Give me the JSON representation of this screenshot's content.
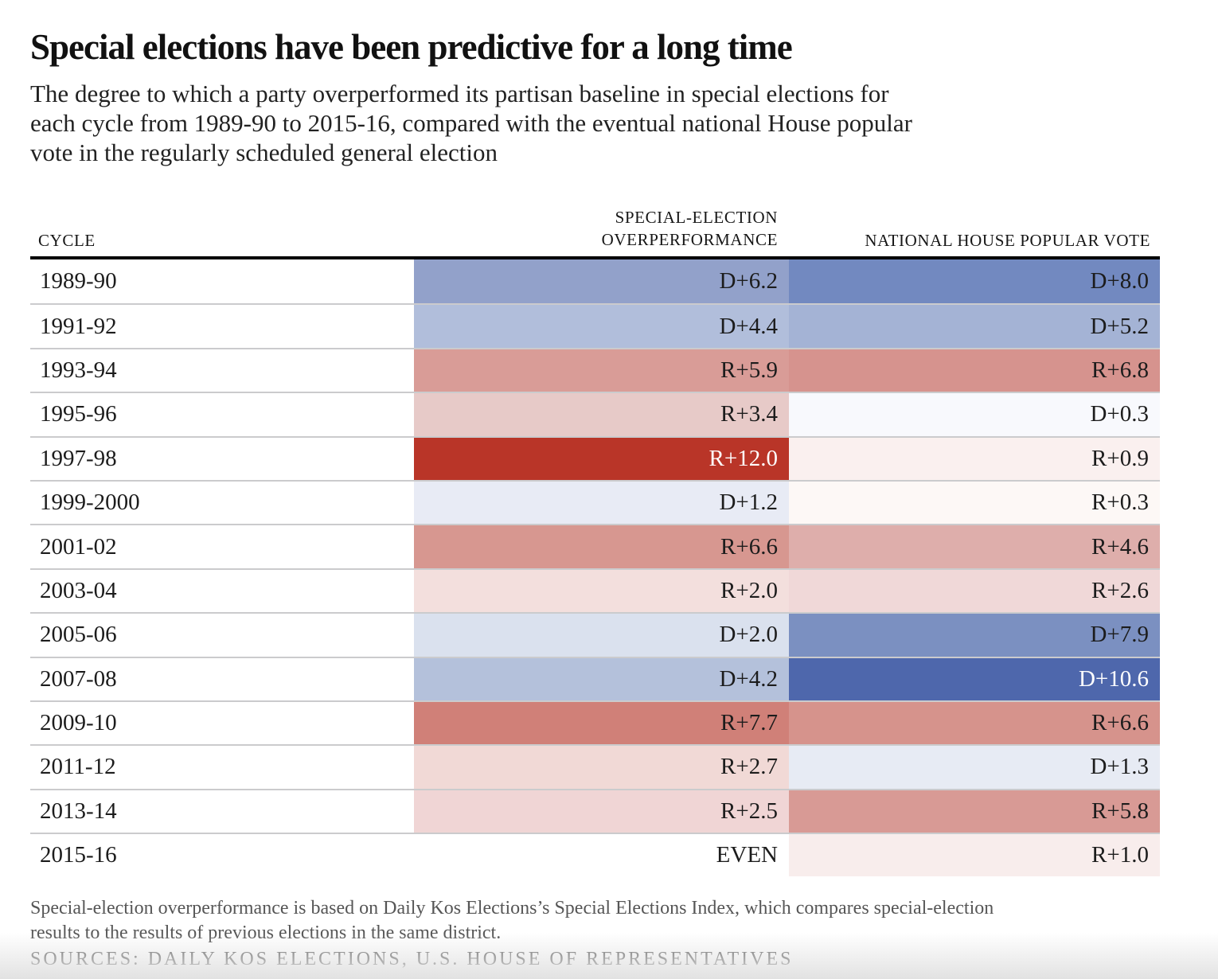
{
  "title": "Special elections have been predictive for a long time",
  "subtitle_lines": [
    "The degree to which a party overperformed its partisan baseline in special elections for",
    "each cycle from 1989-90 to 2015-16, compared with the eventual national House popular",
    "vote in the regularly scheduled general election"
  ],
  "table": {
    "cycle_label": "CYCLE",
    "special_label_line1": "SPECIAL-ELECTION",
    "special_label_line2": "OVERPERFORMANCE",
    "house_label": "NATIONAL HOUSE POPULAR VOTE",
    "rows": [
      {
        "cycle": "1989-90",
        "special": "D+6.2",
        "special_bg": "#92a1ca",
        "house": "D+8.0",
        "house_bg": "#7289c0"
      },
      {
        "cycle": "1991-92",
        "special": "D+4.4",
        "special_bg": "#b1bedb",
        "house": "D+5.2",
        "house_bg": "#a4b3d5"
      },
      {
        "cycle": "1993-94",
        "special": "R+5.9",
        "special_bg": "#d99c97",
        "house": "R+6.8",
        "house_bg": "#d6938e"
      },
      {
        "cycle": "1995-96",
        "special": "R+3.4",
        "special_bg": "#e7cac8",
        "house": "D+0.3",
        "house_bg": "#f8f9fd"
      },
      {
        "cycle": "1997-98",
        "special": "R+12.0",
        "special_bg": "#b93528",
        "special_fg": "#ffffff",
        "house": "R+0.9",
        "house_bg": "#faf0ef"
      },
      {
        "cycle": "1999-2000",
        "special": "D+1.2",
        "special_bg": "#e8ebf5",
        "house": "R+0.3",
        "house_bg": "#fdf8f6"
      },
      {
        "cycle": "2001-02",
        "special": "R+6.6",
        "special_bg": "#d79790",
        "house": "R+4.6",
        "house_bg": "#deaeab"
      },
      {
        "cycle": "2003-04",
        "special": "R+2.0",
        "special_bg": "#f3dfdd",
        "house": "R+2.6",
        "house_bg": "#f0d8d8"
      },
      {
        "cycle": "2005-06",
        "special": "D+2.0",
        "special_bg": "#dae1ee",
        "house": "D+7.9",
        "house_bg": "#7b90c1"
      },
      {
        "cycle": "2007-08",
        "special": "D+4.2",
        "special_bg": "#b4c1db",
        "house": "D+10.6",
        "house_bg": "#4e67ac",
        "house_fg": "#ffffff"
      },
      {
        "cycle": "2009-10",
        "special": "R+7.7",
        "special_bg": "#d08078",
        "house": "R+6.6",
        "house_bg": "#d6938c"
      },
      {
        "cycle": "2011-12",
        "special": "R+2.7",
        "special_bg": "#f1d9d6",
        "house": "D+1.3",
        "house_bg": "#e7ebf4"
      },
      {
        "cycle": "2013-14",
        "special": "R+2.5",
        "special_bg": "#f0d5d5",
        "house": "R+5.8",
        "house_bg": "#d89a95"
      },
      {
        "cycle": "2015-16",
        "special": "EVEN",
        "special_bg": "#ffffff",
        "house": "R+1.0",
        "house_bg": "#f8edec"
      }
    ]
  },
  "chart_data": {
    "type": "table",
    "title": "Special elections have been predictive for a long time",
    "columns": [
      "CYCLE",
      "SPECIAL-ELECTION OVERPERFORMANCE",
      "NATIONAL HOUSE POPULAR VOTE"
    ],
    "rows": [
      {
        "cycle": "1989-90",
        "special_election_overperformance": "D+6.2",
        "national_house_popular_vote": "D+8.0"
      },
      {
        "cycle": "1991-92",
        "special_election_overperformance": "D+4.4",
        "national_house_popular_vote": "D+5.2"
      },
      {
        "cycle": "1993-94",
        "special_election_overperformance": "R+5.9",
        "national_house_popular_vote": "R+6.8"
      },
      {
        "cycle": "1995-96",
        "special_election_overperformance": "R+3.4",
        "national_house_popular_vote": "D+0.3"
      },
      {
        "cycle": "1997-98",
        "special_election_overperformance": "R+12.0",
        "national_house_popular_vote": "R+0.9"
      },
      {
        "cycle": "1999-2000",
        "special_election_overperformance": "D+1.2",
        "national_house_popular_vote": "R+0.3"
      },
      {
        "cycle": "2001-02",
        "special_election_overperformance": "R+6.6",
        "national_house_popular_vote": "R+4.6"
      },
      {
        "cycle": "2003-04",
        "special_election_overperformance": "R+2.0",
        "national_house_popular_vote": "R+2.6"
      },
      {
        "cycle": "2005-06",
        "special_election_overperformance": "D+2.0",
        "national_house_popular_vote": "D+7.9"
      },
      {
        "cycle": "2007-08",
        "special_election_overperformance": "D+4.2",
        "national_house_popular_vote": "D+10.6"
      },
      {
        "cycle": "2009-10",
        "special_election_overperformance": "R+7.7",
        "national_house_popular_vote": "R+6.6"
      },
      {
        "cycle": "2011-12",
        "special_election_overperformance": "R+2.7",
        "national_house_popular_vote": "D+1.3"
      },
      {
        "cycle": "2013-14",
        "special_election_overperformance": "R+2.5",
        "national_house_popular_vote": "R+5.8"
      },
      {
        "cycle": "2015-16",
        "special_election_overperformance": "EVEN",
        "national_house_popular_vote": "R+1.0"
      }
    ],
    "color_legend": {
      "democratic_strong": "#4e67ac",
      "democratic_weak": "#e8ebf5",
      "republican_strong": "#b93528",
      "republican_weak": "#faf0ef"
    }
  },
  "footnote_lines": [
    "Special-election overperformance is based on Daily Kos Elections’s Special Elections Index, which compares special-election",
    "results to the results of previous elections in the same district."
  ],
  "sources": "SOURCES: DAILY KOS ELECTIONS, U.S. HOUSE OF REPRESENTATIVES"
}
